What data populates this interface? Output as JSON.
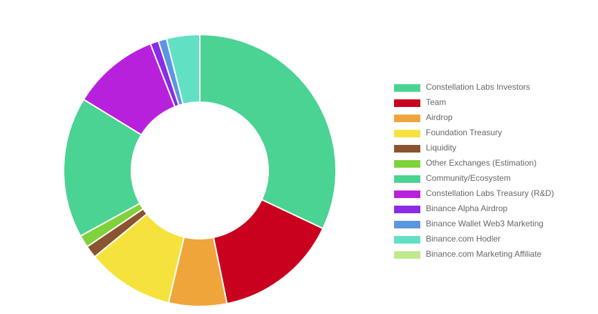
{
  "chart_data": {
    "type": "pie",
    "variant": "doughnut",
    "legend_position": "right",
    "slices": [
      {
        "label": "Constellation Labs Investors",
        "value": 32.5,
        "color": "#4bd393"
      },
      {
        "label": "Team",
        "value": 15,
        "color": "#c9001e"
      },
      {
        "label": "Airdrop",
        "value": 7,
        "color": "#f0a53a"
      },
      {
        "label": "Foundation Treasury",
        "value": 10.5,
        "color": "#f6e23d"
      },
      {
        "label": "Liquidity",
        "value": 1.5,
        "color": "#8b5430"
      },
      {
        "label": "Other Exchanges (Estimation)",
        "value": 1.5,
        "color": "#7fd23b"
      },
      {
        "label": "Community/Ecosystem",
        "value": 17,
        "color": "#4bd393"
      },
      {
        "label": "Constellation Labs Treasury (R&D)",
        "value": 10.5,
        "color": "#b821dc"
      },
      {
        "label": "Binance Alpha Airdrop",
        "value": 1,
        "color": "#8a2be8"
      },
      {
        "label": "Binance Wallet Web3 Marketing",
        "value": 1,
        "color": "#5b97e0"
      },
      {
        "label": "Binance.com Hodler",
        "value": 4,
        "color": "#62e0c4"
      },
      {
        "label": "Binance.com Marketing Affiliate",
        "value": 0,
        "color": "#bfe98e"
      }
    ]
  }
}
